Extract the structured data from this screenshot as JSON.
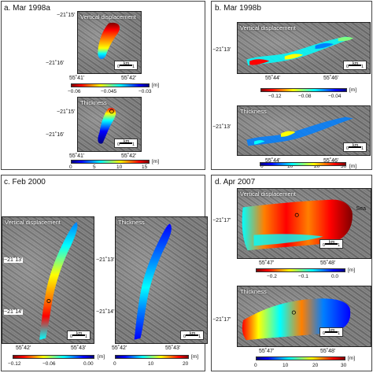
{
  "panels": {
    "a": {
      "title": "a. Mar 1998a",
      "map1_label": "Vertical displacement",
      "map2_label": "Thickness",
      "lat_top": "−21˚15’",
      "lat_bottom": "−21˚16’",
      "lon_left": "55˚41’",
      "lon_right": "55˚42’",
      "disp_ticks": [
        "−0.06",
        "−0.045",
        "−0.03"
      ],
      "disp_unit": "[m]",
      "thick_ticks": [
        "0",
        "5",
        "10",
        "15"
      ],
      "thick_unit": "[m]"
    },
    "b": {
      "title": "b. Mar 1998b",
      "map1_label": "Vertical displacement",
      "map2_label": "Thickness",
      "lat": "−21˚13’",
      "lon_left": "55˚44’",
      "lon_right": "55˚46’",
      "disp_ticks": [
        "−0.12",
        "−0.08",
        "−0.04"
      ],
      "disp_unit": "[m]",
      "thick_ticks": [
        "0",
        "10",
        "20",
        "30"
      ],
      "thick_unit": "[m]"
    },
    "c": {
      "title": "c. Feb 2000",
      "map1_label": "Vertical displacement",
      "map2_label": "Thickness",
      "lat_top": "−21˚13’",
      "lat_bottom": "−21˚14’",
      "lon_left": "55˚42’",
      "lon_right": "55˚43’",
      "disp_ticks": [
        "−0.12",
        "−0.06",
        "0.00"
      ],
      "disp_unit": "[m]",
      "thick_ticks": [
        "0",
        "10",
        "20"
      ],
      "thick_unit": "[m]"
    },
    "d": {
      "title": "d. Apr 2007",
      "map1_label": "Vertical displacement",
      "map2_label": "Thickness",
      "sea_label": "Sea",
      "lat": "−21˚17’",
      "lon_left": "55˚47’",
      "lon_right": "55˚48’",
      "disp_ticks": [
        "−0.2",
        "−0.1",
        "0.0"
      ],
      "disp_unit": "[m]",
      "thick_ticks": [
        "0",
        "10",
        "20",
        "30"
      ],
      "thick_unit": "[m]"
    }
  },
  "scale": {
    "zero": "0",
    "one": "1",
    "unit": "km"
  },
  "colors": {
    "jet": [
      "#00007f",
      "#0000ff",
      "#007fff",
      "#00ffff",
      "#7fff7f",
      "#ffff00",
      "#ff7f00",
      "#ff0000",
      "#7f0000"
    ],
    "jet_reversed": [
      "#7f0000",
      "#ff0000",
      "#ff7f00",
      "#ffff00",
      "#7fff7f",
      "#00ffff",
      "#007fff",
      "#0000ff",
      "#00007f"
    ]
  }
}
